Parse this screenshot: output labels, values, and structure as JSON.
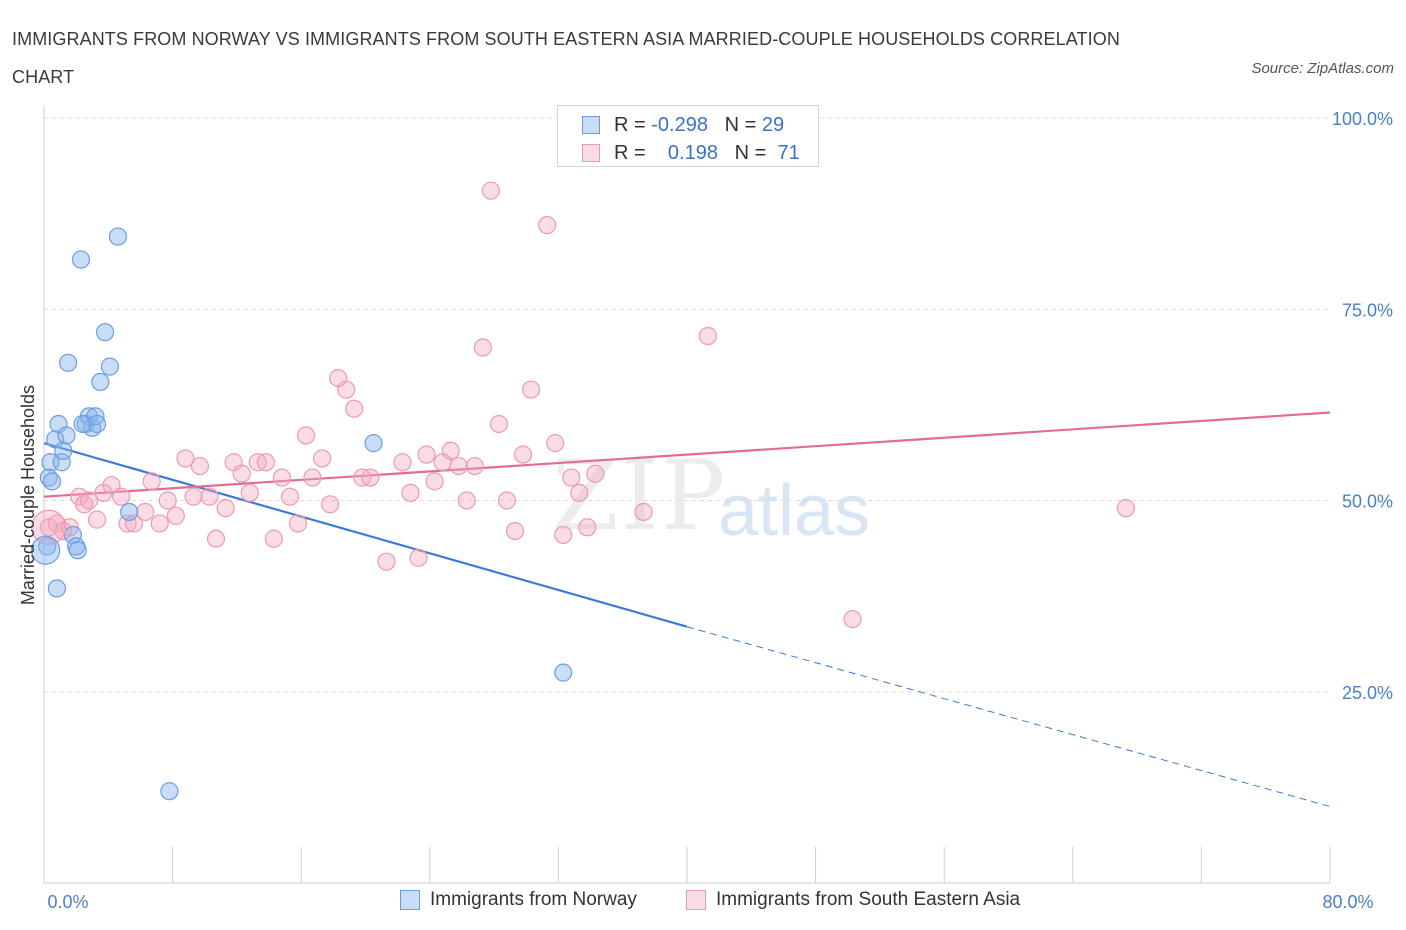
{
  "title": "IMMIGRANTS FROM NORWAY VS IMMIGRANTS FROM SOUTH EASTERN ASIA MARRIED-COUPLE HOUSEHOLDS CORRELATION CHART",
  "source": "Source: ZipAtlas.com",
  "watermark": {
    "zip": "ZIP",
    "atlas": "atlas"
  },
  "legend": {
    "r_label": "R =",
    "n_label": "N =",
    "rows": [
      {
        "r": "-0.298",
        "n": "29",
        "color": "#8ab4ea"
      },
      {
        "r": "0.198",
        "n": "71",
        "color": "#f2a8be"
      }
    ]
  },
  "colors": {
    "norway_fill": "rgba(138,180,234,0.45)",
    "norway_stroke": "#6a9ee0",
    "norway_line": "#3b7bd4",
    "sea_fill": "rgba(242,168,190,0.4)",
    "sea_stroke": "#ec9ab3",
    "sea_line": "#e46c93",
    "tick_text": "#4a80c8",
    "grid": "#dddddd"
  },
  "chart_data": {
    "type": "scatter",
    "xlabel": "",
    "ylabel": "Married-couple Households",
    "xlim": [
      0,
      80
    ],
    "ylim": [
      0,
      100
    ],
    "x_tick_labels": [
      {
        "v": 0,
        "label": "0.0%"
      },
      {
        "v": 80,
        "label": "80.0%"
      }
    ],
    "y_tick_labels": [
      {
        "v": 25,
        "label": "25.0%"
      },
      {
        "v": 50,
        "label": "50.0%"
      },
      {
        "v": 75,
        "label": "75.0%"
      },
      {
        "v": 100,
        "label": "100.0%"
      }
    ],
    "series": [
      {
        "name": "Immigrants from Norway",
        "points": [
          [
            0.2,
            44.0
          ],
          [
            0.3,
            53.0
          ],
          [
            0.4,
            55.0
          ],
          [
            0.5,
            52.5
          ],
          [
            0.7,
            58.0
          ],
          [
            0.8,
            38.5
          ],
          [
            0.9,
            60.0
          ],
          [
            1.1,
            55.0
          ],
          [
            1.2,
            56.5
          ],
          [
            1.4,
            58.5
          ],
          [
            1.5,
            68.0
          ],
          [
            1.8,
            45.5
          ],
          [
            2.0,
            44.0
          ],
          [
            2.1,
            43.5
          ],
          [
            2.3,
            81.5
          ],
          [
            2.6,
            60.0
          ],
          [
            2.8,
            61.0
          ],
          [
            3.0,
            59.5
          ],
          [
            3.2,
            61.0
          ],
          [
            3.3,
            60.0
          ],
          [
            3.5,
            65.5
          ],
          [
            3.8,
            72.0
          ],
          [
            4.1,
            67.5
          ],
          [
            4.6,
            84.5
          ],
          [
            5.3,
            48.5
          ],
          [
            7.8,
            12.0
          ],
          [
            20.5,
            57.5
          ],
          [
            32.3,
            27.5
          ],
          [
            2.4,
            60.0
          ]
        ],
        "trend": {
          "x": [
            0,
            40
          ],
          "y": [
            57.5,
            33.5
          ]
        },
        "trend_ext": {
          "x": [
            40,
            80
          ],
          "y": [
            33.5,
            10.0
          ]
        }
      },
      {
        "name": "Immigrants from South Eastern Asia",
        "points": [
          [
            0.3,
            46.5
          ],
          [
            0.8,
            47.0
          ],
          [
            1.2,
            46.0
          ],
          [
            1.6,
            46.5
          ],
          [
            2.2,
            50.5
          ],
          [
            2.5,
            49.5
          ],
          [
            2.8,
            50.0
          ],
          [
            3.3,
            47.5
          ],
          [
            3.7,
            51.0
          ],
          [
            4.2,
            52.0
          ],
          [
            4.8,
            50.5
          ],
          [
            5.2,
            47.0
          ],
          [
            5.6,
            47.0
          ],
          [
            6.3,
            48.5
          ],
          [
            6.7,
            52.5
          ],
          [
            7.2,
            47.0
          ],
          [
            7.7,
            50.0
          ],
          [
            8.2,
            48.0
          ],
          [
            8.8,
            55.5
          ],
          [
            9.3,
            50.5
          ],
          [
            9.7,
            54.5
          ],
          [
            10.3,
            50.5
          ],
          [
            10.7,
            45.0
          ],
          [
            11.3,
            49.0
          ],
          [
            11.8,
            55.0
          ],
          [
            12.3,
            53.5
          ],
          [
            12.8,
            51.0
          ],
          [
            13.3,
            55.0
          ],
          [
            13.8,
            55.0
          ],
          [
            14.3,
            45.0
          ],
          [
            14.8,
            53.0
          ],
          [
            15.3,
            50.5
          ],
          [
            15.8,
            47.0
          ],
          [
            16.3,
            58.5
          ],
          [
            16.7,
            53.0
          ],
          [
            17.3,
            55.5
          ],
          [
            17.8,
            49.5
          ],
          [
            18.3,
            66.0
          ],
          [
            18.8,
            64.5
          ],
          [
            19.3,
            62.0
          ],
          [
            19.8,
            53.0
          ],
          [
            20.3,
            53.0
          ],
          [
            21.3,
            42.0
          ],
          [
            22.3,
            55.0
          ],
          [
            22.8,
            51.0
          ],
          [
            23.3,
            42.5
          ],
          [
            23.8,
            56.0
          ],
          [
            24.3,
            52.5
          ],
          [
            24.8,
            55.0
          ],
          [
            25.3,
            56.5
          ],
          [
            25.8,
            54.5
          ],
          [
            26.3,
            50.0
          ],
          [
            26.8,
            54.5
          ],
          [
            27.3,
            70.0
          ],
          [
            27.8,
            90.5
          ],
          [
            28.3,
            60.0
          ],
          [
            28.8,
            50.0
          ],
          [
            29.3,
            46.0
          ],
          [
            29.8,
            56.0
          ],
          [
            30.3,
            64.5
          ],
          [
            31.3,
            86.0
          ],
          [
            31.8,
            57.5
          ],
          [
            32.3,
            45.5
          ],
          [
            32.8,
            53.0
          ],
          [
            33.3,
            51.0
          ],
          [
            33.8,
            46.5
          ],
          [
            34.3,
            53.5
          ],
          [
            37.3,
            48.5
          ],
          [
            41.3,
            71.5
          ],
          [
            50.3,
            34.5
          ],
          [
            67.3,
            49.0
          ]
        ],
        "trend": {
          "x": [
            0,
            80
          ],
          "y": [
            50.5,
            61.5
          ]
        }
      }
    ],
    "grid": true,
    "legend_placement": "top-center and bottom"
  },
  "bottom_legend": [
    {
      "label": "Immigrants from Norway"
    },
    {
      "label": "Immigrants from South Eastern Asia"
    }
  ]
}
